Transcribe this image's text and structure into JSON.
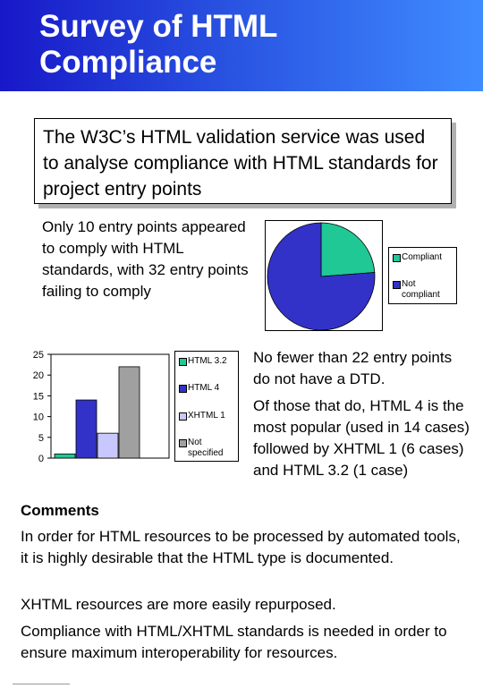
{
  "title": {
    "line1": "Survey of HTML",
    "line2": "Compliance"
  },
  "intro": "The W3C’s HTML validation service was used to analyse compliance with HTML standards for project entry points",
  "paragraph1": "Only 10 entry points appeared to comply with HTML standards, with 32 entry points failing to comply",
  "paragraph2": "No fewer than 22 entry points do not have a DTD.",
  "paragraph3": "Of those that do, HTML 4 is the most popular (used in 14 cases) followed by XHTML 1 (6 cases) and HTML 3.2 (1 case)",
  "comments": {
    "heading": "Comments",
    "items": [
      "In order for HTML resources to be processed by automated tools, it is highly desirable that the HTML type is documented.",
      "XHTML resources are more easily repurposed.",
      "Compliance with HTML/XHTML standards  is needed in order to ensure maximum interoperability for resources."
    ]
  },
  "chart_data": [
    {
      "type": "pie",
      "categories": [
        "Compliant",
        "Not compliant"
      ],
      "values": [
        10,
        32
      ],
      "colors": [
        "#20c896",
        "#3232c8"
      ],
      "legend_position": "right"
    },
    {
      "type": "bar",
      "categories": [
        "HTML 3.2",
        "HTML 4",
        "XHTML 1",
        "Not specified"
      ],
      "values": [
        1,
        14,
        6,
        22
      ],
      "colors": [
        "#20c896",
        "#3232c8",
        "#c8c8ff",
        "#a0a0a0"
      ],
      "ylim": [
        0,
        25
      ],
      "yticks": [
        0,
        5,
        10,
        15,
        20,
        25
      ],
      "legend_position": "right"
    }
  ]
}
